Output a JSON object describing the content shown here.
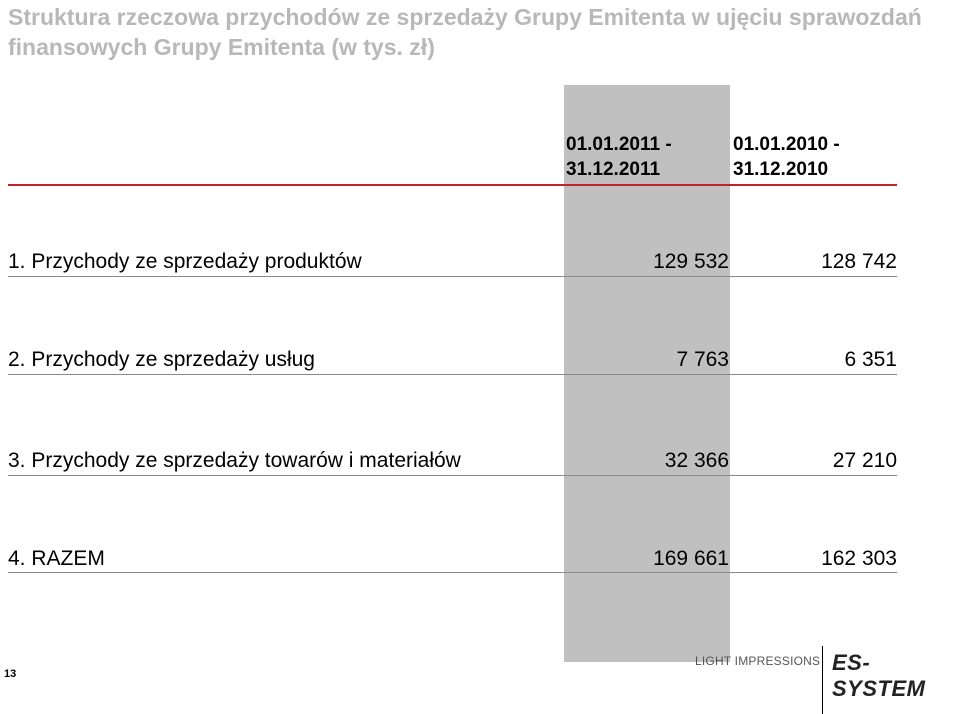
{
  "title": "Struktura rzeczowa przychodów ze sprzedaży Grupy Emitenta w ujęciu sprawozdań finansowych Grupy Emitenta (w tys. zł)",
  "columns": [
    {
      "line1": "01.01.2011 -",
      "line2": "31.12.2011"
    },
    {
      "line1": "01.01.2010 -",
      "line2": "31.12.2010"
    }
  ],
  "rows": [
    {
      "label": "1. Przychody ze sprzedaży produktów",
      "v2011": "129 532",
      "v2010": "128 742"
    },
    {
      "label": "2. Przychody ze sprzedaży usług",
      "v2011": "7 763",
      "v2010": "6 351"
    },
    {
      "label": "3. Przychody ze sprzedaży towarów i materiałów",
      "v2011": "32 366",
      "v2010": "27 210"
    },
    {
      "label": "4. RAZEM",
      "v2011": "169 661",
      "v2010": "162 303"
    }
  ],
  "footer": {
    "page_number": "13",
    "tagline": "LIGHT IMPRESSIONS",
    "logo_text": "ES-SYSTEM"
  },
  "colors": {
    "title": "#b8b8b8",
    "highlight_column": "#c0c0c0",
    "header_rule": "#c0242a",
    "row_rule": "#8a8a8a"
  }
}
